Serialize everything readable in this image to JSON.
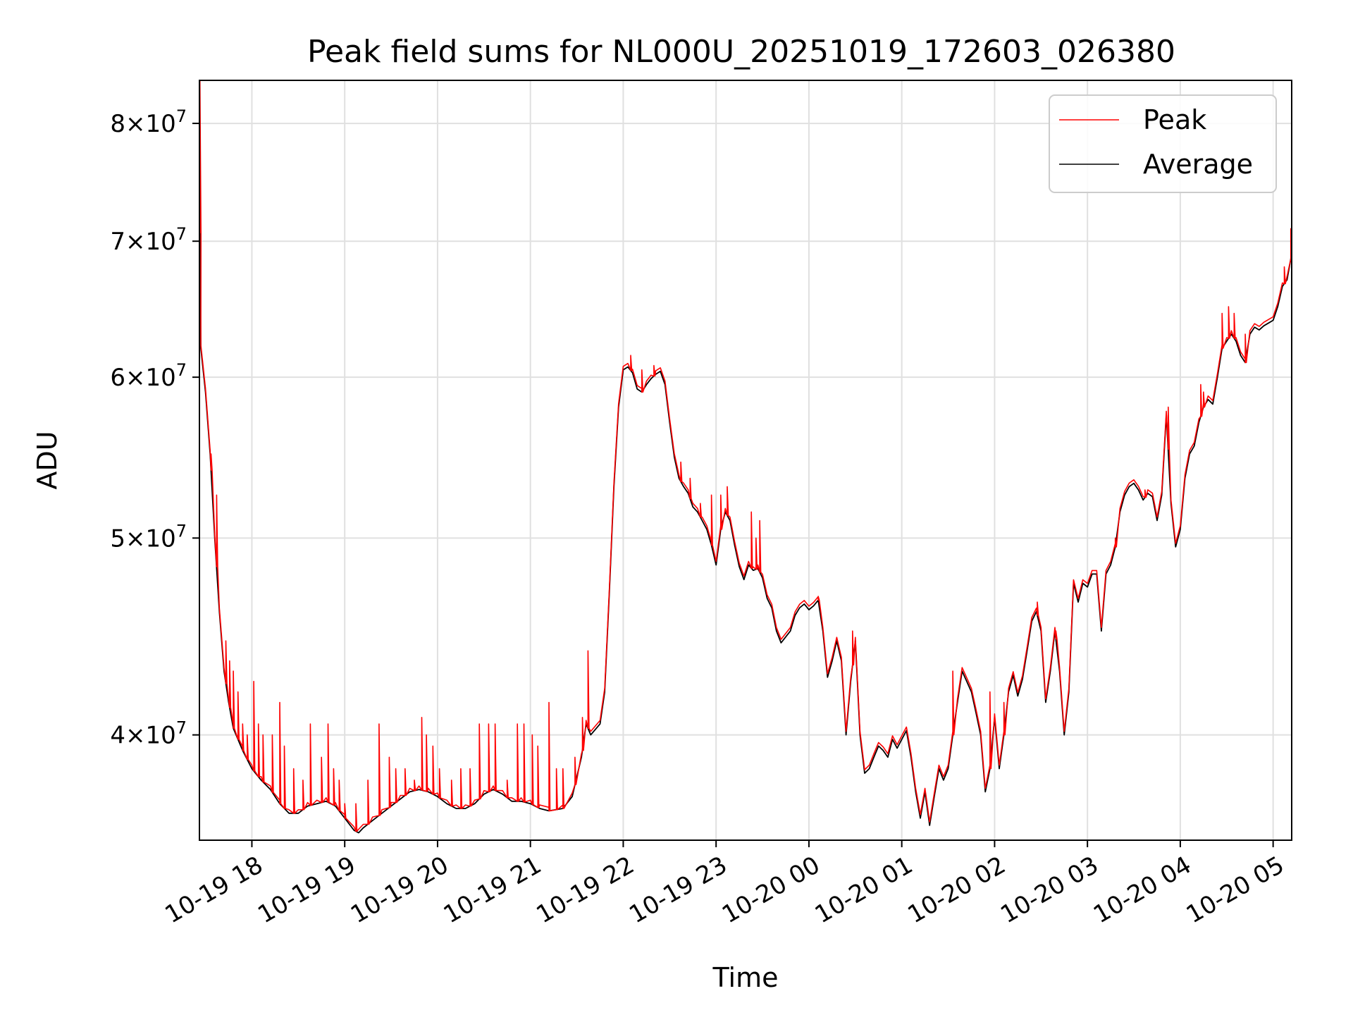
{
  "chart_data": {
    "type": "line",
    "title": "Peak field sums for NL000U_20251019_172603_026380",
    "xlabel": "Time",
    "ylabel": "ADU",
    "yscale": "log",
    "ylim": [
      35500000,
      84000000
    ],
    "xlim_hours": [
      17.435,
      29.2
    ],
    "grid": true,
    "legend_position": "top-right",
    "x_ticks": [
      {
        "hours": 18,
        "label": "10-19 18"
      },
      {
        "hours": 19,
        "label": "10-19 19"
      },
      {
        "hours": 20,
        "label": "10-19 20"
      },
      {
        "hours": 21,
        "label": "10-19 21"
      },
      {
        "hours": 22,
        "label": "10-19 22"
      },
      {
        "hours": 23,
        "label": "10-19 23"
      },
      {
        "hours": 24,
        "label": "10-20 00"
      },
      {
        "hours": 25,
        "label": "10-20 01"
      },
      {
        "hours": 26,
        "label": "10-20 02"
      },
      {
        "hours": 27,
        "label": "10-20 03"
      },
      {
        "hours": 28,
        "label": "10-20 04"
      },
      {
        "hours": 29,
        "label": "10-20 05"
      }
    ],
    "y_ticks": [
      {
        "value": 40000000,
        "mantissa": "4",
        "exp": "7"
      },
      {
        "value": 50000000,
        "mantissa": "5",
        "exp": "7"
      },
      {
        "value": 60000000,
        "mantissa": "6",
        "exp": "7"
      },
      {
        "value": 70000000,
        "mantissa": "7",
        "exp": "7"
      },
      {
        "value": 80000000,
        "mantissa": "8",
        "exp": "7"
      }
    ],
    "series": [
      {
        "name": "Peak",
        "color": "#ff0000"
      },
      {
        "name": "Average",
        "color": "#000000"
      }
    ],
    "average_points": [
      [
        17.435,
        75.0
      ],
      [
        17.45,
        62.0
      ],
      [
        17.5,
        59.0
      ],
      [
        17.55,
        55.0
      ],
      [
        17.6,
        50.0
      ],
      [
        17.65,
        46.0
      ],
      [
        17.7,
        43.0
      ],
      [
        17.75,
        41.5
      ],
      [
        17.8,
        40.3
      ],
      [
        17.9,
        39.3
      ],
      [
        18.0,
        38.5
      ],
      [
        18.1,
        38.0
      ],
      [
        18.2,
        37.6
      ],
      [
        18.3,
        37.0
      ],
      [
        18.4,
        36.6
      ],
      [
        18.5,
        36.6
      ],
      [
        18.6,
        36.9
      ],
      [
        18.7,
        37.0
      ],
      [
        18.8,
        37.1
      ],
      [
        18.9,
        36.9
      ],
      [
        19.0,
        36.4
      ],
      [
        19.1,
        35.9
      ],
      [
        19.15,
        35.8
      ],
      [
        19.2,
        36.0
      ],
      [
        19.3,
        36.3
      ],
      [
        19.4,
        36.6
      ],
      [
        19.5,
        36.9
      ],
      [
        19.6,
        37.2
      ],
      [
        19.7,
        37.5
      ],
      [
        19.8,
        37.6
      ],
      [
        19.9,
        37.5
      ],
      [
        20.0,
        37.3
      ],
      [
        20.1,
        37.0
      ],
      [
        20.2,
        36.8
      ],
      [
        20.3,
        36.8
      ],
      [
        20.4,
        37.0
      ],
      [
        20.5,
        37.4
      ],
      [
        20.6,
        37.6
      ],
      [
        20.7,
        37.4
      ],
      [
        20.8,
        37.1
      ],
      [
        20.9,
        37.1
      ],
      [
        21.0,
        37.0
      ],
      [
        21.1,
        36.8
      ],
      [
        21.2,
        36.7
      ],
      [
        21.35,
        36.8
      ],
      [
        21.45,
        37.3
      ],
      [
        21.55,
        39.0
      ],
      [
        21.6,
        40.5
      ],
      [
        21.65,
        40.0
      ],
      [
        21.75,
        40.5
      ],
      [
        21.8,
        42.0
      ],
      [
        21.85,
        47.0
      ],
      [
        21.9,
        53.0
      ],
      [
        21.95,
        58.0
      ],
      [
        22.0,
        60.5
      ],
      [
        22.05,
        60.7
      ],
      [
        22.1,
        60.3
      ],
      [
        22.15,
        59.2
      ],
      [
        22.2,
        59.0
      ],
      [
        22.25,
        59.5
      ],
      [
        22.3,
        59.9
      ],
      [
        22.35,
        60.2
      ],
      [
        22.4,
        60.4
      ],
      [
        22.45,
        59.5
      ],
      [
        22.5,
        57.0
      ],
      [
        22.55,
        54.8
      ],
      [
        22.6,
        53.5
      ],
      [
        22.65,
        53.0
      ],
      [
        22.7,
        52.6
      ],
      [
        22.75,
        51.8
      ],
      [
        22.8,
        51.5
      ],
      [
        22.85,
        51.0
      ],
      [
        22.9,
        50.5
      ],
      [
        22.95,
        49.6
      ],
      [
        23.0,
        48.5
      ],
      [
        23.05,
        50.5
      ],
      [
        23.1,
        51.5
      ],
      [
        23.15,
        51.0
      ],
      [
        23.2,
        49.6
      ],
      [
        23.25,
        48.4
      ],
      [
        23.3,
        47.7
      ],
      [
        23.35,
        48.5
      ],
      [
        23.4,
        48.2
      ],
      [
        23.45,
        48.3
      ],
      [
        23.5,
        47.8
      ],
      [
        23.55,
        46.7
      ],
      [
        23.6,
        46.2
      ],
      [
        23.65,
        45.0
      ],
      [
        23.7,
        44.4
      ],
      [
        23.75,
        44.7
      ],
      [
        23.8,
        45.0
      ],
      [
        23.85,
        45.8
      ],
      [
        23.9,
        46.2
      ],
      [
        23.95,
        46.4
      ],
      [
        24.0,
        46.1
      ],
      [
        24.05,
        46.3
      ],
      [
        24.1,
        46.6
      ],
      [
        24.15,
        45.0
      ],
      [
        24.2,
        42.7
      ],
      [
        24.25,
        43.5
      ],
      [
        24.3,
        44.5
      ],
      [
        24.35,
        43.5
      ],
      [
        24.4,
        40.0
      ],
      [
        24.45,
        42.5
      ],
      [
        24.5,
        44.5
      ],
      [
        24.55,
        40.0
      ],
      [
        24.6,
        38.3
      ],
      [
        24.65,
        38.5
      ],
      [
        24.7,
        39.0
      ],
      [
        24.75,
        39.5
      ],
      [
        24.8,
        39.3
      ],
      [
        24.85,
        39.0
      ],
      [
        24.9,
        39.8
      ],
      [
        24.95,
        39.4
      ],
      [
        25.0,
        39.8
      ],
      [
        25.05,
        40.2
      ],
      [
        25.1,
        39.0
      ],
      [
        25.15,
        37.5
      ],
      [
        25.2,
        36.4
      ],
      [
        25.25,
        37.5
      ],
      [
        25.3,
        36.1
      ],
      [
        25.35,
        37.3
      ],
      [
        25.4,
        38.5
      ],
      [
        25.45,
        38.0
      ],
      [
        25.5,
        38.5
      ],
      [
        25.55,
        40.0
      ],
      [
        25.6,
        41.5
      ],
      [
        25.65,
        43.0
      ],
      [
        25.7,
        42.5
      ],
      [
        25.75,
        42.0
      ],
      [
        25.8,
        41.0
      ],
      [
        25.85,
        40.0
      ],
      [
        25.9,
        37.5
      ],
      [
        25.95,
        38.5
      ],
      [
        26.0,
        40.8
      ],
      [
        26.05,
        38.5
      ],
      [
        26.1,
        40.0
      ],
      [
        26.15,
        42.0
      ],
      [
        26.2,
        42.8
      ],
      [
        26.25,
        41.8
      ],
      [
        26.3,
        42.6
      ],
      [
        26.35,
        44.0
      ],
      [
        26.4,
        45.5
      ],
      [
        26.45,
        46.0
      ],
      [
        26.5,
        45.0
      ],
      [
        26.55,
        41.5
      ],
      [
        26.6,
        43.0
      ],
      [
        26.65,
        45.0
      ],
      [
        26.7,
        43.0
      ],
      [
        26.75,
        40.0
      ],
      [
        26.8,
        42.0
      ],
      [
        26.85,
        47.5
      ],
      [
        26.9,
        46.5
      ],
      [
        26.95,
        47.5
      ],
      [
        27.0,
        47.3
      ],
      [
        27.05,
        48.0
      ],
      [
        27.1,
        48.0
      ],
      [
        27.15,
        45.0
      ],
      [
        27.2,
        48.0
      ],
      [
        27.25,
        48.5
      ],
      [
        27.3,
        49.5
      ],
      [
        27.35,
        51.5
      ],
      [
        27.4,
        52.5
      ],
      [
        27.45,
        53.0
      ],
      [
        27.5,
        53.2
      ],
      [
        27.55,
        52.8
      ],
      [
        27.6,
        52.2
      ],
      [
        27.65,
        52.6
      ],
      [
        27.7,
        52.4
      ],
      [
        27.75,
        51.0
      ],
      [
        27.8,
        52.5
      ],
      [
        27.85,
        57.5
      ],
      [
        27.9,
        52.0
      ],
      [
        27.95,
        49.5
      ],
      [
        28.0,
        50.5
      ],
      [
        28.05,
        53.5
      ],
      [
        28.1,
        55.0
      ],
      [
        28.15,
        55.5
      ],
      [
        28.2,
        57.0
      ],
      [
        28.25,
        58.0
      ],
      [
        28.3,
        58.5
      ],
      [
        28.35,
        58.2
      ],
      [
        28.4,
        60.0
      ],
      [
        28.45,
        62.0
      ],
      [
        28.5,
        62.5
      ],
      [
        28.55,
        63.0
      ],
      [
        28.6,
        62.5
      ],
      [
        28.65,
        61.5
      ],
      [
        28.7,
        61.0
      ],
      [
        28.75,
        63.0
      ],
      [
        28.8,
        63.5
      ],
      [
        28.85,
        63.3
      ],
      [
        28.9,
        63.6
      ],
      [
        28.95,
        63.8
      ],
      [
        29.0,
        64.0
      ],
      [
        29.05,
        65.0
      ],
      [
        29.1,
        66.5
      ],
      [
        29.15,
        67.0
      ],
      [
        29.2,
        69.0
      ]
    ],
    "peak_spikes": [
      [
        17.44,
        84.0
      ],
      [
        17.56,
        55.0
      ],
      [
        17.62,
        52.5
      ],
      [
        17.72,
        44.5
      ],
      [
        17.76,
        43.5
      ],
      [
        17.8,
        43.0
      ],
      [
        17.85,
        42.0
      ],
      [
        17.9,
        40.5
      ],
      [
        17.95,
        40.0
      ],
      [
        18.02,
        42.5
      ],
      [
        18.07,
        40.5
      ],
      [
        18.12,
        40.0
      ],
      [
        18.22,
        40.0
      ],
      [
        18.3,
        41.5
      ],
      [
        18.35,
        39.5
      ],
      [
        18.45,
        38.5
      ],
      [
        18.55,
        38.0
      ],
      [
        18.63,
        40.5
      ],
      [
        18.75,
        39.0
      ],
      [
        18.82,
        40.5
      ],
      [
        18.88,
        38.5
      ],
      [
        18.94,
        38.0
      ],
      [
        19.0,
        37.0
      ],
      [
        19.12,
        37.0
      ],
      [
        19.25,
        38.0
      ],
      [
        19.37,
        40.5
      ],
      [
        19.48,
        39.0
      ],
      [
        19.55,
        38.5
      ],
      [
        19.65,
        38.5
      ],
      [
        19.75,
        38.0
      ],
      [
        19.83,
        40.8
      ],
      [
        19.88,
        40.0
      ],
      [
        19.95,
        39.5
      ],
      [
        20.02,
        38.5
      ],
      [
        20.15,
        38.0
      ],
      [
        20.25,
        38.5
      ],
      [
        20.35,
        38.5
      ],
      [
        20.45,
        40.5
      ],
      [
        20.55,
        40.5
      ],
      [
        20.62,
        40.5
      ],
      [
        20.75,
        38.0
      ],
      [
        20.86,
        40.5
      ],
      [
        20.93,
        40.5
      ],
      [
        21.02,
        40.0
      ],
      [
        21.08,
        39.5
      ],
      [
        21.2,
        41.5
      ],
      [
        21.28,
        38.5
      ],
      [
        21.35,
        38.5
      ],
      [
        21.48,
        39.0
      ],
      [
        21.56,
        40.8
      ],
      [
        21.62,
        44.0
      ],
      [
        22.08,
        61.5
      ],
      [
        22.2,
        60.5
      ],
      [
        22.33,
        60.8
      ],
      [
        22.62,
        54.5
      ],
      [
        22.72,
        53.5
      ],
      [
        22.83,
        52.0
      ],
      [
        22.95,
        52.5
      ],
      [
        23.05,
        52.5
      ],
      [
        23.12,
        53.0
      ],
      [
        23.38,
        51.5
      ],
      [
        23.43,
        50.0
      ],
      [
        23.47,
        51.0
      ],
      [
        24.1,
        46.8
      ],
      [
        24.47,
        45.0
      ],
      [
        25.55,
        43.0
      ],
      [
        25.95,
        42.0
      ],
      [
        26.1,
        41.5
      ],
      [
        26.46,
        46.5
      ],
      [
        26.66,
        45.0
      ],
      [
        27.3,
        50.0
      ],
      [
        27.62,
        52.8
      ],
      [
        27.87,
        58.0
      ],
      [
        28.22,
        59.5
      ],
      [
        28.25,
        59.0
      ],
      [
        28.45,
        64.5
      ],
      [
        28.52,
        65.0
      ],
      [
        28.58,
        64.5
      ],
      [
        28.7,
        63.0
      ],
      [
        29.12,
        68.0
      ],
      [
        29.19,
        71.0
      ]
    ]
  }
}
